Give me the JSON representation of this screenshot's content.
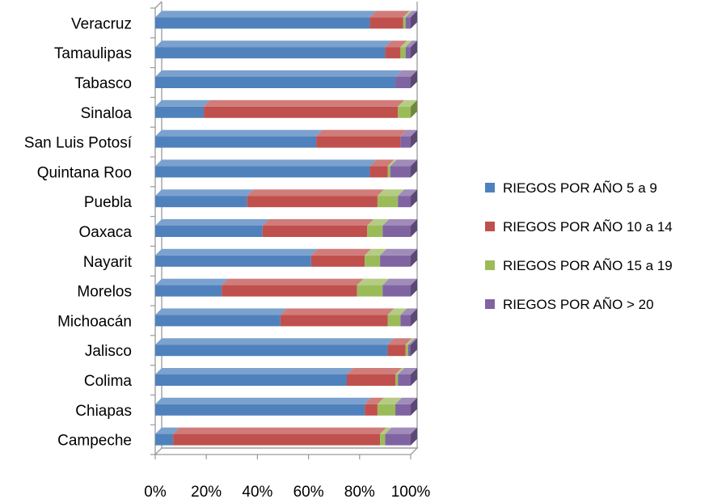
{
  "chart_data": {
    "type": "bar",
    "orientation": "horizontal",
    "stacked": "percent",
    "three_d": true,
    "categories": [
      "Campeche",
      "Chiapas",
      "Colima",
      "Jalisco",
      "Michoacán",
      "Morelos",
      "Nayarit",
      "Oaxaca",
      "Puebla",
      "Quintana Roo",
      "San Luis Potosí",
      "Sinaloa",
      "Tabasco",
      "Tamaulipas",
      "Veracruz"
    ],
    "series": [
      {
        "name": "RIEGOS POR AÑO 5 a 9",
        "color": "#4F81BD",
        "values": [
          7,
          82,
          75,
          91,
          49,
          26,
          61,
          42,
          36,
          84,
          63,
          19,
          94,
          90,
          84
        ]
      },
      {
        "name": "RIEGOS POR AÑO 10 a 14",
        "color": "#C0504D",
        "values": [
          81,
          5,
          19,
          7,
          42,
          53,
          21,
          41,
          51,
          7,
          33,
          76,
          0,
          6,
          13
        ]
      },
      {
        "name": "RIEGOS POR AÑO 15 a 19",
        "color": "#9BBB59",
        "values": [
          2,
          7,
          1,
          1,
          5,
          10,
          6,
          6,
          8,
          1,
          0,
          5,
          0,
          2,
          1
        ]
      },
      {
        "name": "RIEGOS POR AÑO > 20",
        "color": "#8064A2",
        "values": [
          10,
          6,
          5,
          1,
          4,
          11,
          12,
          11,
          5,
          8,
          4,
          0,
          6,
          2,
          2
        ]
      }
    ],
    "x_ticks": [
      "0%",
      "20%",
      "40%",
      "60%",
      "80%",
      "100%"
    ],
    "xlim": [
      0,
      100
    ],
    "title": "",
    "xlabel": "",
    "ylabel": "",
    "grid": false,
    "legend_position": "right"
  }
}
